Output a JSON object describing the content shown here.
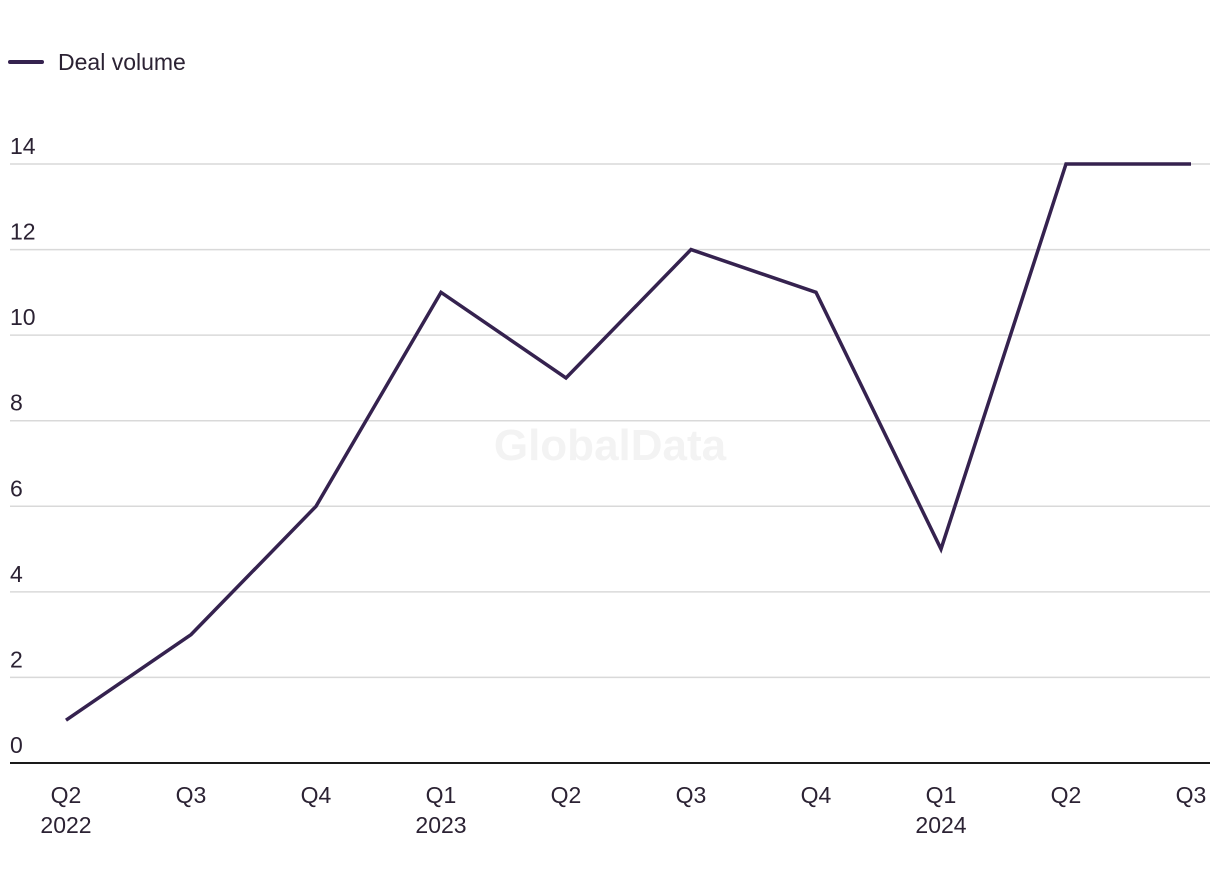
{
  "chart_data": {
    "type": "line",
    "categories": [
      [
        "Q2",
        "2022"
      ],
      [
        "Q3"
      ],
      [
        "Q4"
      ],
      [
        "Q1",
        "2023"
      ],
      [
        "Q2"
      ],
      [
        "Q3"
      ],
      [
        "Q4"
      ],
      [
        "Q1",
        "2024"
      ],
      [
        "Q2"
      ],
      [
        "Q3"
      ]
    ],
    "series": [
      {
        "name": "Deal volume",
        "color": "#35224f",
        "values": [
          1,
          3,
          6,
          11,
          9,
          12,
          11,
          5,
          14,
          14
        ]
      }
    ],
    "yticks": [
      0,
      2,
      4,
      6,
      8,
      10,
      12,
      14
    ],
    "ylim": [
      0,
      14
    ],
    "grid": true,
    "legend_position": "top-left"
  },
  "watermark": "GlobalData"
}
